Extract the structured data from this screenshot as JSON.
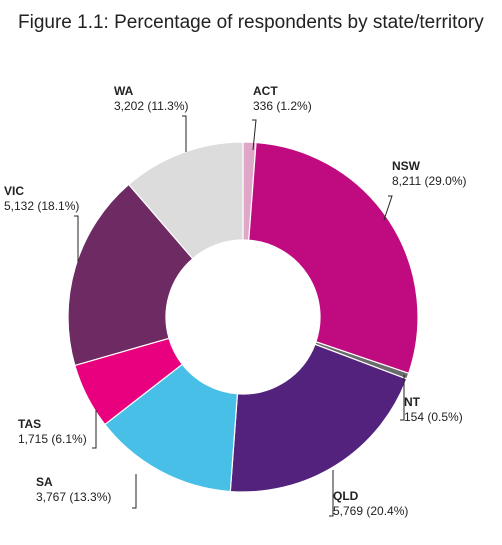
{
  "title": "Figure 1.1: Percentage of respondents by state/territory",
  "chart_data": {
    "type": "pie",
    "title": "Figure 1.1: Percentage of respondents by state/territory",
    "slices": [
      {
        "name": "ACT",
        "value": 336,
        "label": "336 (1.2%)",
        "color": "#e0a6c8"
      },
      {
        "name": "NSW",
        "value": 8211,
        "label": "8,211 (29.0%)",
        "color": "#c00a80"
      },
      {
        "name": "NT",
        "value": 154,
        "label": "154 (0.5%)",
        "color": "#6b6b6b"
      },
      {
        "name": "QLD",
        "value": 5769,
        "label": "5,769 (20.4%)",
        "color": "#53227c"
      },
      {
        "name": "SA",
        "value": 3767,
        "label": "3,767 (13.3%)",
        "color": "#48bfe6"
      },
      {
        "name": "TAS",
        "value": 1715,
        "label": "1,715 (6.1%)",
        "color": "#e8007f"
      },
      {
        "name": "VIC",
        "value": 5132,
        "label": "5,132 (18.1%)",
        "color": "#6e2a63"
      },
      {
        "name": "WA",
        "value": 3202,
        "label": "3,202 (11.3%)",
        "color": "#dcdcdc"
      }
    ]
  }
}
